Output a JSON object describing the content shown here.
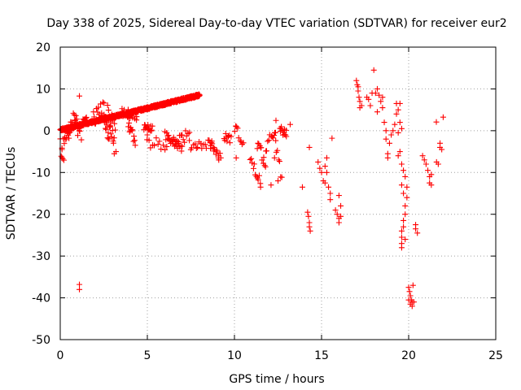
{
  "chart_data": {
    "type": "scatter",
    "title": "Day 338 of 2025, Sidereal Day-to-day VTEC variation (SDTVAR) for receiver eur2",
    "xlabel": "GPS time / hours",
    "ylabel": "SDTVAR / TECUs",
    "xlim": [
      0,
      25
    ],
    "ylim": [
      -50,
      20
    ],
    "xticks": [
      0,
      5,
      10,
      15,
      20,
      25
    ],
    "yticks": [
      -50,
      -40,
      -30,
      -20,
      -10,
      0,
      10,
      20
    ],
    "grid": true,
    "marker": "+",
    "series": [
      {
        "name": "SDTVAR",
        "color": "#ff0000",
        "segments": [
          [
            0.0,
            8.0,
            0.15,
            8.5,
            0.3,
            2.0,
            0.6
          ],
          [
            0.0,
            0.2,
            -3.5,
            -7.5,
            2.0,
            0.5
          ],
          [
            0.2,
            0.45,
            -2.0,
            -0.5,
            1.5,
            0.5
          ],
          [
            0.45,
            0.85,
            1.0,
            3.0,
            2.0,
            0.5
          ],
          [
            0.85,
            1.2,
            2.0,
            -1.0,
            2.0,
            0.5
          ],
          [
            1.3,
            1.5,
            2.5,
            2.5,
            0.8,
            0.5
          ],
          [
            1.9,
            2.5,
            3.0,
            5.0,
            2.5,
            0.4
          ],
          [
            2.5,
            3.2,
            4.5,
            2.0,
            2.5,
            0.4
          ],
          [
            2.6,
            3.1,
            0.5,
            -2.0,
            2.0,
            0.5
          ],
          [
            3.5,
            4.4,
            4.5,
            3.5,
            1.0,
            0.4
          ],
          [
            3.9,
            4.3,
            0.5,
            -2.0,
            2.0,
            0.5
          ],
          [
            4.8,
            5.3,
            1.0,
            0.5,
            0.8,
            0.5
          ],
          [
            5.0,
            6.5,
            -3.0,
            -3.5,
            1.5,
            0.18
          ],
          [
            6.0,
            7.0,
            -1.0,
            -3.5,
            1.5,
            0.35
          ],
          [
            6.5,
            7.4,
            -2.5,
            -1.0,
            1.5,
            0.25
          ],
          [
            7.4,
            8.8,
            -3.5,
            -3.0,
            1.2,
            0.22
          ],
          [
            8.6,
            9.2,
            -3.0,
            -6.5,
            1.0,
            0.4
          ],
          [
            9.4,
            9.8,
            -1.5,
            -2.0,
            1.0,
            0.4
          ],
          [
            10.0,
            10.5,
            1.0,
            -3.0,
            1.2,
            0.3
          ],
          [
            10.9,
            11.5,
            -7.0,
            -12.5,
            1.5,
            0.3
          ],
          [
            11.3,
            11.8,
            -3.0,
            -8.0,
            1.5,
            0.35
          ],
          [
            11.8,
            12.4,
            -6.0,
            2.0,
            2.0,
            0.3
          ],
          [
            12.3,
            12.7,
            -2.0,
            -12.0,
            2.0,
            0.35
          ],
          [
            12.6,
            13.0,
            0.5,
            -1.0,
            1.0,
            0.5
          ]
        ],
        "points": [
          [
            0.05,
            0.2
          ],
          [
            0.1,
            -4.5
          ],
          [
            0.5,
            -1.8
          ],
          [
            1.1,
            -36.8
          ],
          [
            1.1,
            -38.0
          ],
          [
            1.1,
            8.3
          ],
          [
            1.4,
            2.8
          ],
          [
            1.5,
            3.2
          ],
          [
            3.1,
            -5.5
          ],
          [
            3.2,
            -5.0
          ],
          [
            5.0,
            -1.0
          ],
          [
            9.1,
            -7.0
          ],
          [
            10.1,
            -6.5
          ],
          [
            11.5,
            -13.5
          ],
          [
            12.1,
            -13.0
          ],
          [
            12.3,
            -6.5
          ],
          [
            12.5,
            -12.0
          ],
          [
            13.2,
            1.5
          ],
          [
            13.9,
            -13.5
          ],
          [
            14.2,
            -19.5
          ],
          [
            14.25,
            -20.5
          ],
          [
            14.3,
            -22.0
          ],
          [
            14.3,
            -23.0
          ],
          [
            14.35,
            -24.0
          ],
          [
            14.3,
            -4.0
          ],
          [
            14.8,
            -7.5
          ],
          [
            14.9,
            -9.0
          ],
          [
            15.0,
            -10.0
          ],
          [
            15.1,
            -12.0
          ],
          [
            15.2,
            -12.5
          ],
          [
            15.2,
            -8.5
          ],
          [
            15.3,
            -10.0
          ],
          [
            15.4,
            -13.5
          ],
          [
            15.5,
            -15.0
          ],
          [
            15.5,
            -16.5
          ],
          [
            15.3,
            -6.5
          ],
          [
            15.6,
            -1.8
          ],
          [
            15.8,
            -19.0
          ],
          [
            15.9,
            -20.0
          ],
          [
            16.0,
            -21.0
          ],
          [
            16.0,
            -22.0
          ],
          [
            16.0,
            -15.5
          ],
          [
            16.1,
            -18.0
          ],
          [
            16.1,
            -20.5
          ],
          [
            17.0,
            12.0
          ],
          [
            17.05,
            11.0
          ],
          [
            17.1,
            10.5
          ],
          [
            17.1,
            9.5
          ],
          [
            17.15,
            8.0
          ],
          [
            17.2,
            7.0
          ],
          [
            17.2,
            5.5
          ],
          [
            17.3,
            6.0
          ],
          [
            17.6,
            8.0
          ],
          [
            17.7,
            7.5
          ],
          [
            17.8,
            6.0
          ],
          [
            17.9,
            9.0
          ],
          [
            18.0,
            14.5
          ],
          [
            18.1,
            9.0
          ],
          [
            18.2,
            10.0
          ],
          [
            18.2,
            4.5
          ],
          [
            18.3,
            8.5
          ],
          [
            18.4,
            7.0
          ],
          [
            18.5,
            8.0
          ],
          [
            18.5,
            5.5
          ],
          [
            18.6,
            2.0
          ],
          [
            18.7,
            0.0
          ],
          [
            18.7,
            -2.0
          ],
          [
            18.8,
            -5.5
          ],
          [
            18.8,
            -6.5
          ],
          [
            18.9,
            -3.0
          ],
          [
            19.0,
            -1.0
          ],
          [
            19.1,
            0.0
          ],
          [
            19.2,
            1.5
          ],
          [
            19.3,
            4.0
          ],
          [
            19.3,
            6.5
          ],
          [
            19.4,
            5.0
          ],
          [
            19.4,
            -6.0
          ],
          [
            19.5,
            -5.0
          ],
          [
            19.5,
            2.0
          ],
          [
            19.6,
            0.5
          ],
          [
            19.6,
            -8.0
          ],
          [
            19.6,
            -13.0
          ],
          [
            19.7,
            -9.5
          ],
          [
            19.7,
            -15.0
          ],
          [
            19.8,
            -11.0
          ],
          [
            19.8,
            -18.0
          ],
          [
            19.6,
            -24.0
          ],
          [
            19.6,
            -25.5
          ],
          [
            19.6,
            -27.0
          ],
          [
            19.6,
            -28.0
          ],
          [
            19.7,
            -21.5
          ],
          [
            19.7,
            -23.0
          ],
          [
            19.8,
            -26.0
          ],
          [
            19.8,
            -20.0
          ],
          [
            19.9,
            -16.0
          ],
          [
            19.9,
            -13.5
          ],
          [
            19.4,
            -0.5
          ],
          [
            19.5,
            6.5
          ],
          [
            20.0,
            -37.5
          ],
          [
            20.05,
            -38.5
          ],
          [
            20.1,
            -39.5
          ],
          [
            20.0,
            -40.5
          ],
          [
            20.1,
            -41.5
          ],
          [
            20.15,
            -40.5
          ],
          [
            20.2,
            -42.0
          ],
          [
            20.2,
            -41.0
          ],
          [
            20.25,
            -37.0
          ],
          [
            20.3,
            -41.0
          ],
          [
            20.4,
            -22.5
          ],
          [
            20.4,
            -23.5
          ],
          [
            20.5,
            -24.5
          ],
          [
            20.8,
            -6.0
          ],
          [
            20.9,
            -7.0
          ],
          [
            21.0,
            -8.0
          ],
          [
            21.1,
            -9.5
          ],
          [
            21.2,
            -11.0
          ],
          [
            21.2,
            -12.5
          ],
          [
            21.3,
            -10.5
          ],
          [
            21.3,
            -13.0
          ],
          [
            21.6,
            -7.5
          ],
          [
            21.7,
            -8.0
          ],
          [
            21.8,
            -4.0
          ],
          [
            21.8,
            -3.0
          ],
          [
            21.9,
            -4.5
          ]
        ],
        "tail_segment": [
          21.6,
          22.0,
          1.5,
          2.5,
          0.8,
          0.1
        ]
      }
    ]
  }
}
